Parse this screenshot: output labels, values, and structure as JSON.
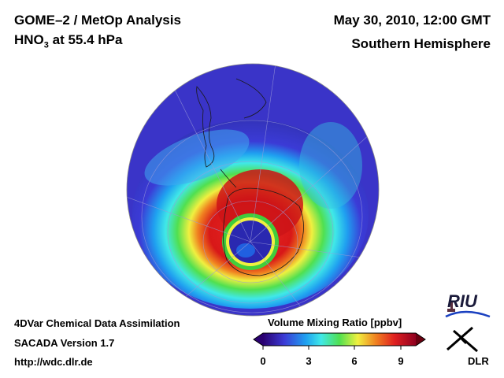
{
  "header": {
    "title_line1": "GOME–2 / MetOp Analysis",
    "title_line2_prefix": "HNO",
    "title_line2_sub": "3",
    "title_line2_suffix": " at 55.4 hPa",
    "date": "May 30, 2010, 12:00 GMT",
    "region": "Southern Hemisphere"
  },
  "footer": {
    "model": "4DVar Chemical Data Assimilation",
    "version": "SACADA Version 1.7",
    "url": "http://wdc.dlr.de"
  },
  "colorbar": {
    "title": "Volume Mixing Ratio [ppbv]",
    "ticks": [
      "0",
      "3",
      "6",
      "9"
    ],
    "range": [
      0,
      10
    ],
    "colors": [
      "#2a0070",
      "#3b3bd6",
      "#1fa0f0",
      "#40e8e8",
      "#50e050",
      "#f0f040",
      "#f08020",
      "#e02020",
      "#900020"
    ]
  },
  "logos": {
    "riu": "RIU",
    "dlr": "DLR"
  },
  "map": {
    "projection": "orthographic",
    "hemisphere": "south"
  }
}
